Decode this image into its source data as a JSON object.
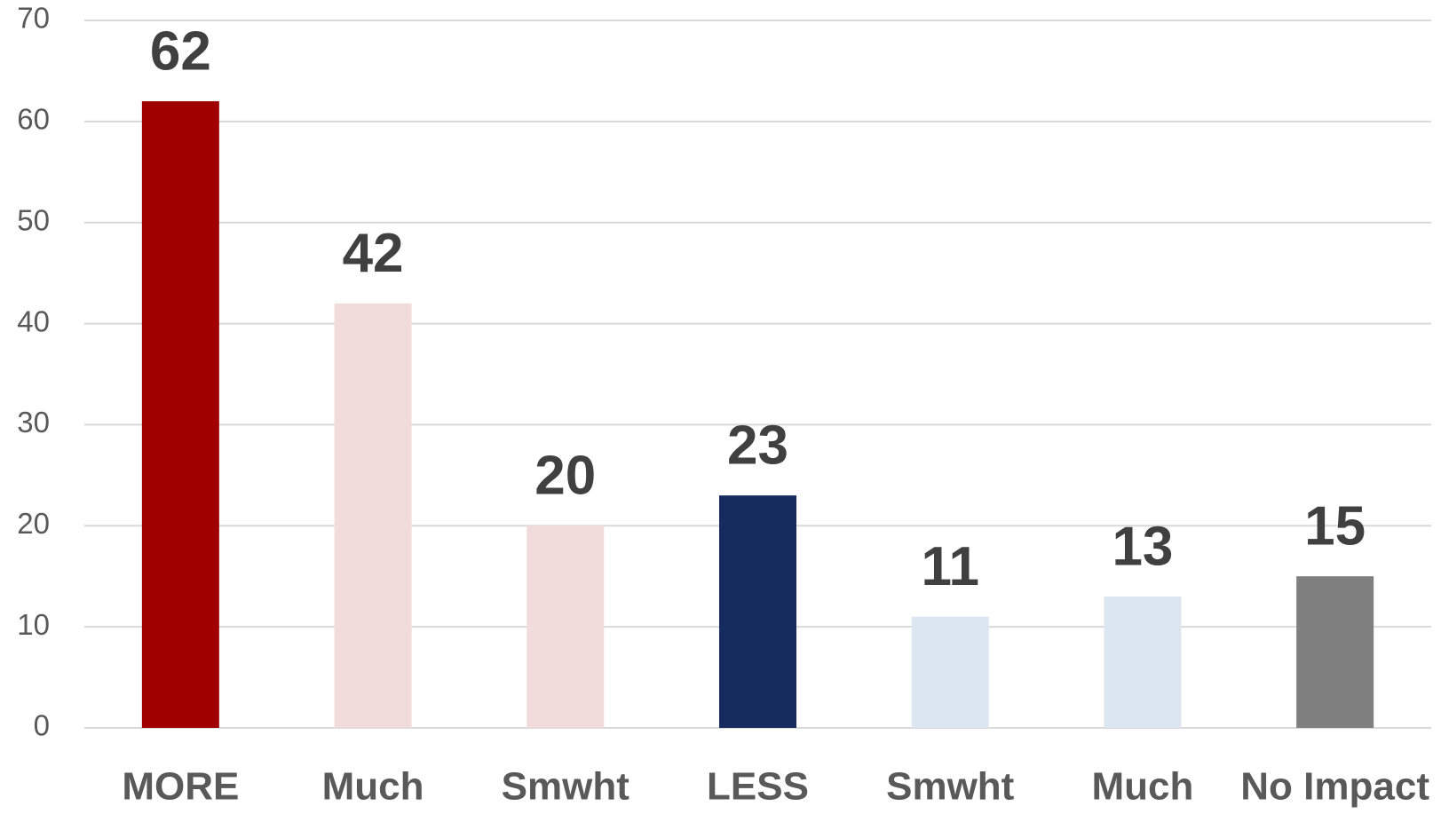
{
  "chart_data": {
    "type": "bar",
    "categories": [
      "MORE",
      "Much",
      "Smwht",
      "LESS",
      "Smwht",
      "Much",
      "No Impact"
    ],
    "values": [
      62,
      42,
      20,
      23,
      11,
      13,
      15
    ],
    "colors": [
      "#a00000",
      "#f2dcdb",
      "#f2dcdb",
      "#172c5e",
      "#dce6f1",
      "#dce6f1",
      "#7f7f7f"
    ],
    "ylim": [
      0,
      70
    ],
    "yticks": [
      0,
      10,
      20,
      30,
      40,
      50,
      60,
      70
    ],
    "grid": true
  }
}
